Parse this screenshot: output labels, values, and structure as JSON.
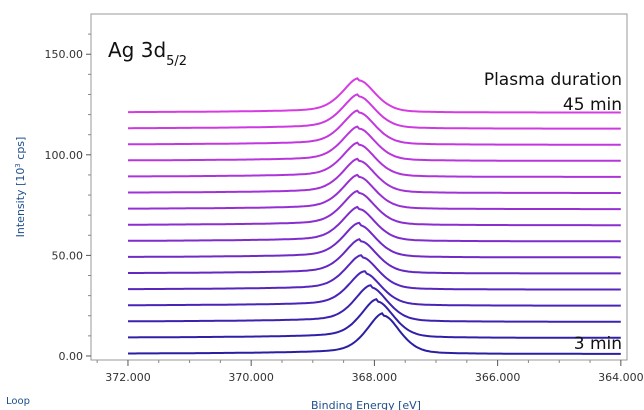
{
  "chart_data": {
    "type": "line",
    "xlabel": "Binding Energy [eV]",
    "ylabel_prefix": "Intensity [10",
    "ylabel_exp": "3",
    "ylabel_suffix": " cps]",
    "x_reversed": true,
    "xlim": [
      372.6,
      363.9
    ],
    "ylim": [
      -2,
      170
    ],
    "x_ticks": [
      372.0,
      370.0,
      368.0,
      366.0,
      364.0
    ],
    "x_tick_labels": [
      "372.000",
      "370.000",
      "368.000",
      "366.000",
      "364.000"
    ],
    "y_ticks": [
      0,
      50,
      100,
      150
    ],
    "y_tick_labels": [
      "0.00",
      "50.00",
      "100.00",
      "150.00"
    ],
    "x_range": [
      372.0,
      364.0
    ],
    "series": [
      {
        "baseline": 1.0,
        "peak_height": 19,
        "peak_center": 367.85,
        "color": "#2a1fa3"
      },
      {
        "baseline": 9.0,
        "peak_height": 18,
        "peak_center": 367.95,
        "color": "#3020a8"
      },
      {
        "baseline": 17.0,
        "peak_height": 17,
        "peak_center": 368.05,
        "color": "#3d22b0"
      },
      {
        "baseline": 25.0,
        "peak_height": 16,
        "peak_center": 368.15,
        "color": "#4a24b8"
      },
      {
        "baseline": 33.0,
        "peak_height": 16,
        "peak_center": 368.2,
        "color": "#5726bd"
      },
      {
        "baseline": 41.0,
        "peak_height": 16,
        "peak_center": 368.22,
        "color": "#6428c2"
      },
      {
        "baseline": 49.0,
        "peak_height": 16,
        "peak_center": 368.24,
        "color": "#712ac6"
      },
      {
        "baseline": 57.0,
        "peak_height": 16,
        "peak_center": 368.25,
        "color": "#7e2ccb"
      },
      {
        "baseline": 65.0,
        "peak_height": 16,
        "peak_center": 368.25,
        "color": "#8a2ecf"
      },
      {
        "baseline": 73.0,
        "peak_height": 16,
        "peak_center": 368.25,
        "color": "#9630d3"
      },
      {
        "baseline": 81.0,
        "peak_height": 16,
        "peak_center": 368.25,
        "color": "#a232d6"
      },
      {
        "baseline": 89.0,
        "peak_height": 16,
        "peak_center": 368.25,
        "color": "#ad34d9"
      },
      {
        "baseline": 97.0,
        "peak_height": 16,
        "peak_center": 368.25,
        "color": "#b836dc"
      },
      {
        "baseline": 105.0,
        "peak_height": 16,
        "peak_center": 368.25,
        "color": "#c238de"
      },
      {
        "baseline": 113.0,
        "peak_height": 16,
        "peak_center": 368.25,
        "color": "#cc3ae0"
      },
      {
        "baseline": 121.0,
        "peak_height": 16,
        "peak_center": 368.25,
        "color": "#d63ce2"
      }
    ],
    "peak_width_ev": 0.28,
    "annotations": {
      "peak_label_main": "Ag 3d",
      "peak_label_sub": "5/2",
      "legend_title": "Plasma duration",
      "top_label": "45 min",
      "bottom_label": "3 min"
    }
  },
  "footer": {
    "loop_label": "Loop"
  }
}
